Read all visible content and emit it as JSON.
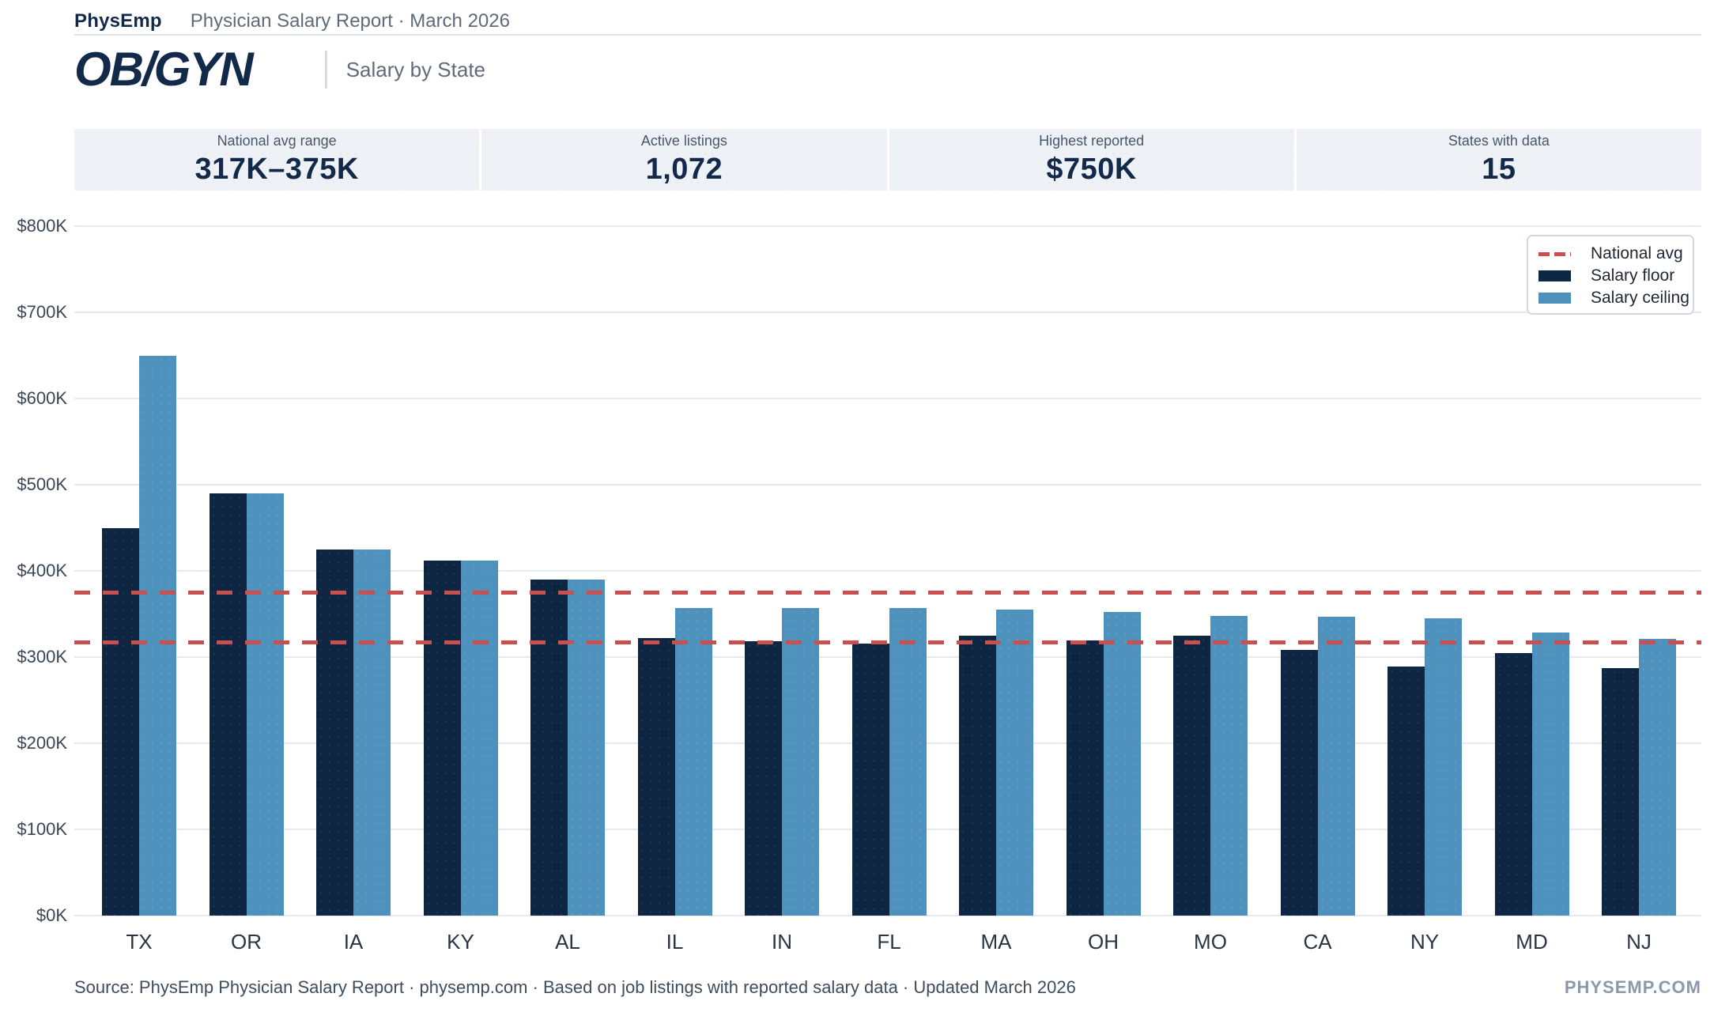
{
  "header": {
    "brand": "PhysEmp",
    "report_line": "Physician Salary Report  ·  March 2026"
  },
  "title": {
    "specialty": "OB/GYN",
    "subtitle": "Salary by State"
  },
  "stats": [
    {
      "label": "National avg range",
      "value": "317K–375K"
    },
    {
      "label": "Active listings",
      "value": "1,072"
    },
    {
      "label": "Highest reported",
      "value": "$750K"
    },
    {
      "label": "States with data",
      "value": "15"
    }
  ],
  "legend": [
    {
      "label": "National avg",
      "symbol": "dashed-line",
      "color": "#c9504e"
    },
    {
      "label": "Salary floor",
      "symbol": "swatch",
      "color": "#0f2642"
    },
    {
      "label": "Salary ceiling",
      "symbol": "swatch",
      "color": "#4f91bd"
    }
  ],
  "chart_data": {
    "type": "bar",
    "title": "OB/GYN Salary by State",
    "units": "USD thousands per year",
    "categories": [
      "TX",
      "OR",
      "IA",
      "KY",
      "AL",
      "IL",
      "IN",
      "FL",
      "MA",
      "OH",
      "MO",
      "CA",
      "NY",
      "MD",
      "NJ"
    ],
    "series": [
      {
        "name": "Salary floor",
        "color": "#0f2642",
        "values": [
          450,
          490,
          425,
          412,
          390,
          322,
          318,
          316,
          325,
          319,
          325,
          308,
          289,
          305,
          287
        ]
      },
      {
        "name": "Salary ceiling",
        "color": "#4f91bd",
        "values": [
          650,
          490,
          425,
          412,
          390,
          357,
          357,
          357,
          355,
          352,
          348,
          347,
          345,
          328,
          321
        ]
      }
    ],
    "reference_lines": [
      {
        "label": "National avg low",
        "value": 317,
        "color": "#c9504e",
        "style": "dashed"
      },
      {
        "label": "National avg high",
        "value": 375,
        "color": "#c9504e",
        "style": "dashed"
      }
    ],
    "yticks": [
      0,
      100,
      200,
      300,
      400,
      500,
      600,
      700,
      800
    ],
    "ytick_prefix": "$",
    "ytick_suffix": "K",
    "ylim": [
      0,
      800
    ],
    "grid": true,
    "legend_position": "top-right"
  },
  "footer": {
    "source_line": "Source: PhysEmp Physician Salary Report  ·  physemp.com  ·  Based on job listings with reported salary data  ·  Updated March 2026",
    "watermark": "PHYSEMP.COM"
  }
}
